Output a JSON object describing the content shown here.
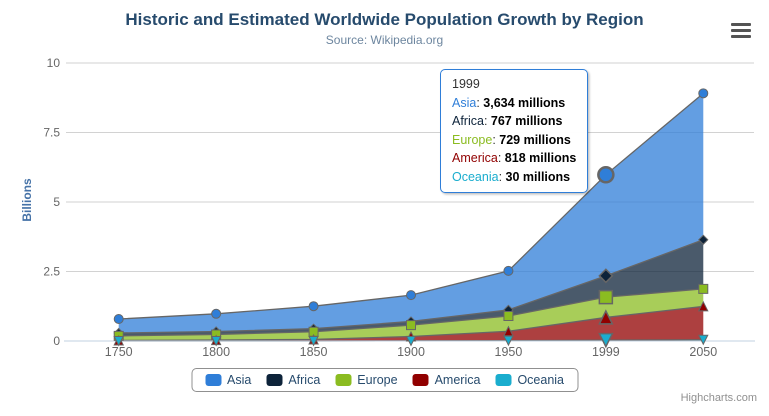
{
  "chart": {
    "title": "Historic and Estimated Worldwide Population Growth by Region",
    "subtitle": "Source: Wikipedia.org",
    "credits": "Highcharts.com",
    "menu_icon": "hamburger-icon"
  },
  "colors": {
    "title": "#274b6d",
    "subtitle": "#6D869F",
    "axis_labels": "#666666",
    "axis_line": "#C0D0E0",
    "gridline": "#d2d2d2",
    "series_line": "#666666",
    "y_axis_title": "#4572A7",
    "legend_text": "#274b6d",
    "tooltip_border": "#2f7ed8"
  },
  "chart_data": {
    "type": "area",
    "stacking": "normal",
    "title": "Historic and Estimated Worldwide Population Growth by Region",
    "subtitle": "Source: Wikipedia.org",
    "categories": [
      "1750",
      "1800",
      "1850",
      "1900",
      "1950",
      "1999",
      "2050"
    ],
    "series": [
      {
        "name": "Asia",
        "color": "#2f7ed8",
        "marker": "circle",
        "values": [
          502,
          635,
          809,
          947,
          1402,
          3634,
          5268
        ]
      },
      {
        "name": "Africa",
        "color": "#0d233a",
        "marker": "diamond",
        "values": [
          106,
          107,
          111,
          133,
          221,
          767,
          1766
        ]
      },
      {
        "name": "Europe",
        "color": "#8bbc21",
        "marker": "square",
        "values": [
          163,
          203,
          276,
          408,
          547,
          729,
          628
        ]
      },
      {
        "name": "America",
        "color": "#910000",
        "marker": "triangle",
        "values": [
          18,
          31,
          54,
          156,
          339,
          818,
          1201
        ]
      },
      {
        "name": "Oceania",
        "color": "#1aadce",
        "marker": "triangle-down",
        "values": [
          2,
          2,
          2,
          6,
          13,
          30,
          46
        ]
      }
    ],
    "values_unit": "millions",
    "xlabel": "",
    "ylabel": "Billions",
    "yticks": [
      "0",
      "2.5",
      "5",
      "7.5",
      "10"
    ],
    "ylim": [
      0,
      10
    ],
    "grid": true,
    "fill_opacity": 0.75,
    "legend_position": "bottom",
    "hover_category": "1999"
  },
  "tooltip": {
    "header": "1999",
    "rows": [
      {
        "name": "Asia",
        "value": "3,634 millions"
      },
      {
        "name": "Africa",
        "value": "767 millions"
      },
      {
        "name": "Europe",
        "value": "729 millions"
      },
      {
        "name": "America",
        "value": "818 millions"
      },
      {
        "name": "Oceania",
        "value": "30 millions"
      }
    ]
  },
  "legend": {
    "items": [
      {
        "label": "Asia",
        "color": "#2f7ed8"
      },
      {
        "label": "Africa",
        "color": "#0d233a"
      },
      {
        "label": "Europe",
        "color": "#8bbc21"
      },
      {
        "label": "America",
        "color": "#910000"
      },
      {
        "label": "Oceania",
        "color": "#1aadce"
      }
    ]
  }
}
